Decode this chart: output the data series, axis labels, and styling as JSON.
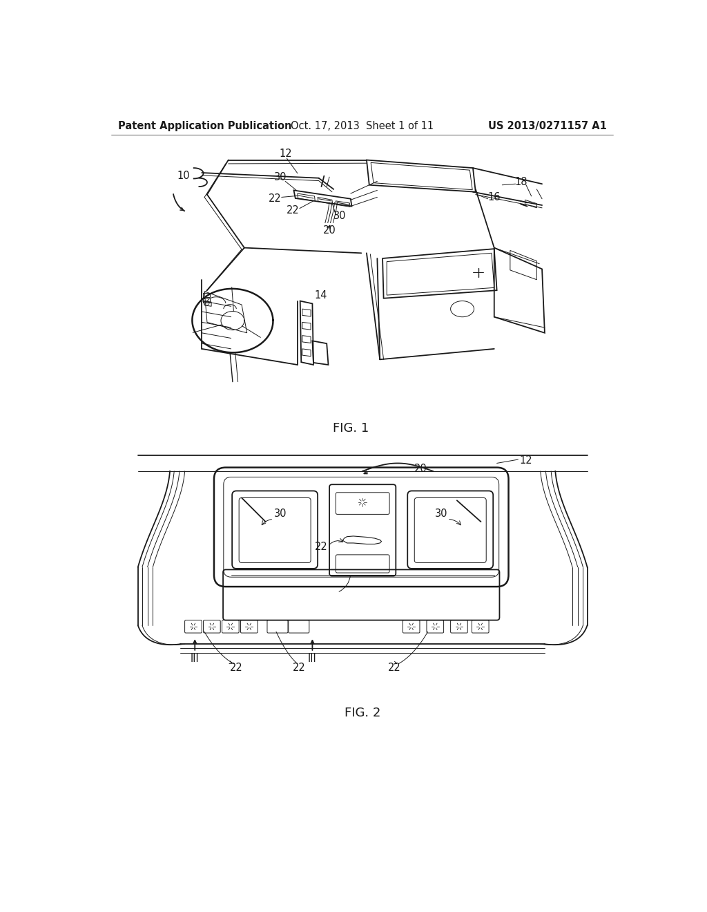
{
  "background_color": "#ffffff",
  "line_color": "#1a1a1a",
  "header_left": "Patent Application Publication",
  "header_center": "Oct. 17, 2013  Sheet 1 of 11",
  "header_right": "US 2013/0271157 A1",
  "fig1_label": "FIG. 1",
  "fig2_label": "FIG. 2",
  "header_fontsize": 10.5,
  "label_fontsize": 10.5,
  "fig_label_fontsize": 13,
  "lw_main": 1.3,
  "lw_thin": 0.7,
  "lw_med": 1.0,
  "lw_thick": 1.8
}
